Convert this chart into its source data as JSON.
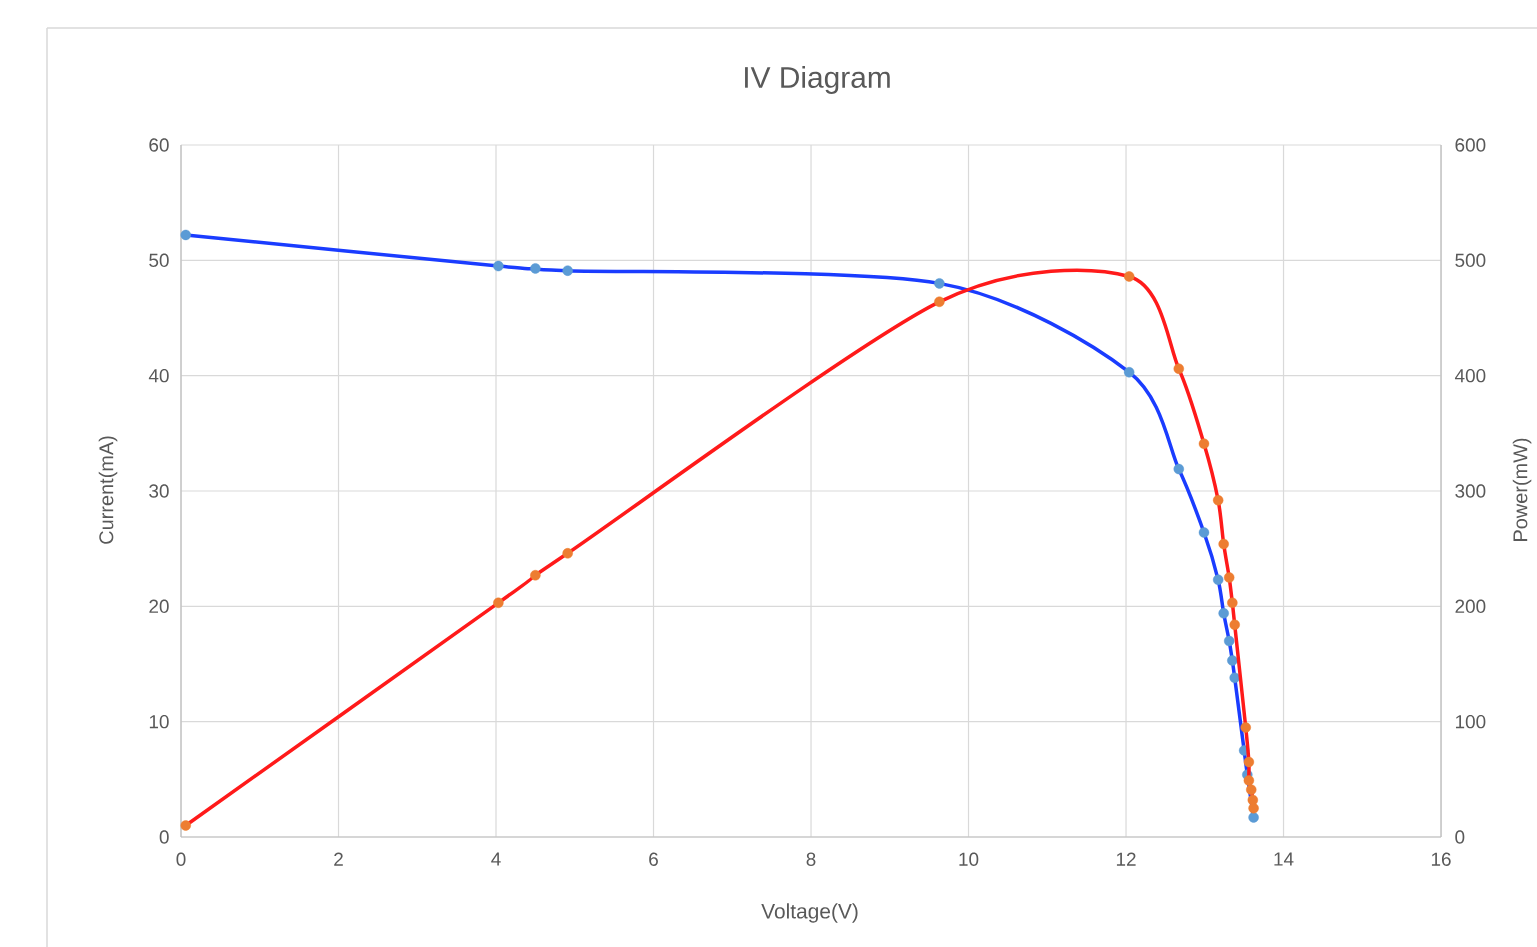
{
  "chart_data": {
    "type": "line",
    "title": "IV Diagram",
    "xlabel": "Voltage(V)",
    "ylabel": "Current(mA)",
    "y2label": "Power(mW)",
    "xlim": [
      0,
      16
    ],
    "xticks": [
      0,
      2,
      4,
      6,
      8,
      10,
      12,
      14,
      16
    ],
    "ylim": [
      0,
      60
    ],
    "yticks": [
      0,
      10,
      20,
      30,
      40,
      50,
      60
    ],
    "y2lim": [
      0,
      600
    ],
    "y2ticks": [
      0,
      100,
      200,
      300,
      400,
      500,
      600
    ],
    "grid": true,
    "marker": "circle",
    "line_style": "solid",
    "series": [
      {
        "color": "#1a3cff",
        "colors": [
          "#5b9bd5",
          "#5b9bd5",
          "#5b9bd5",
          "#5b9bd5",
          "#5b9bd5",
          "#5b9bd5",
          "#5b9bd5",
          "#5b9bd5",
          "#5b9bd5",
          "#5b9bd5",
          "#5b9bd5",
          "#5b9bd5",
          "#5b9bd5",
          "#5b9bd5",
          "#5b9bd5",
          "#5b9bd5",
          "#5b9bd5",
          "#5b9bd5"
        ],
        "x": [
          0.06,
          4.03,
          4.5,
          4.91,
          9.63,
          12.04,
          12.67,
          12.99,
          13.17,
          13.24,
          13.31,
          13.35,
          13.38,
          13.5,
          13.54,
          13.56,
          13.59,
          13.62
        ],
        "values": [
          52.2,
          49.5,
          49.3,
          49.1,
          48.0,
          40.3,
          31.9,
          26.4,
          22.3,
          19.4,
          17.0,
          15.3,
          13.8,
          7.5,
          5.4,
          null,
          null,
          1.7
        ]
      },
      {
        "color": "#ff1a1a",
        "axis": "y2",
        "colors": [
          "#ed7d31",
          "#ed7d31",
          "#ed7d31",
          "#ed7d31",
          "#ed7d31",
          "#ed7d31",
          "#ed7d31",
          "#ed7d31",
          "#ed7d31",
          "#ed7d31",
          "#ed7d31",
          "#ed7d31",
          "#ed7d31",
          "#ed7d31",
          "#ed7d31",
          "#ed7d31",
          "#ed7d31",
          "#ed7d31",
          "#ed7d31"
        ],
        "x": [
          0.06,
          4.03,
          4.5,
          4.91,
          9.63,
          12.04,
          12.67,
          12.99,
          13.17,
          13.24,
          13.31,
          13.35,
          13.38,
          13.52,
          13.56,
          13.56,
          13.59,
          13.61,
          13.62
        ],
        "values": [
          10,
          203,
          227,
          246,
          464,
          486,
          406,
          341,
          292,
          254,
          225,
          203,
          184,
          95,
          65,
          49,
          41,
          32,
          25
        ]
      }
    ]
  }
}
